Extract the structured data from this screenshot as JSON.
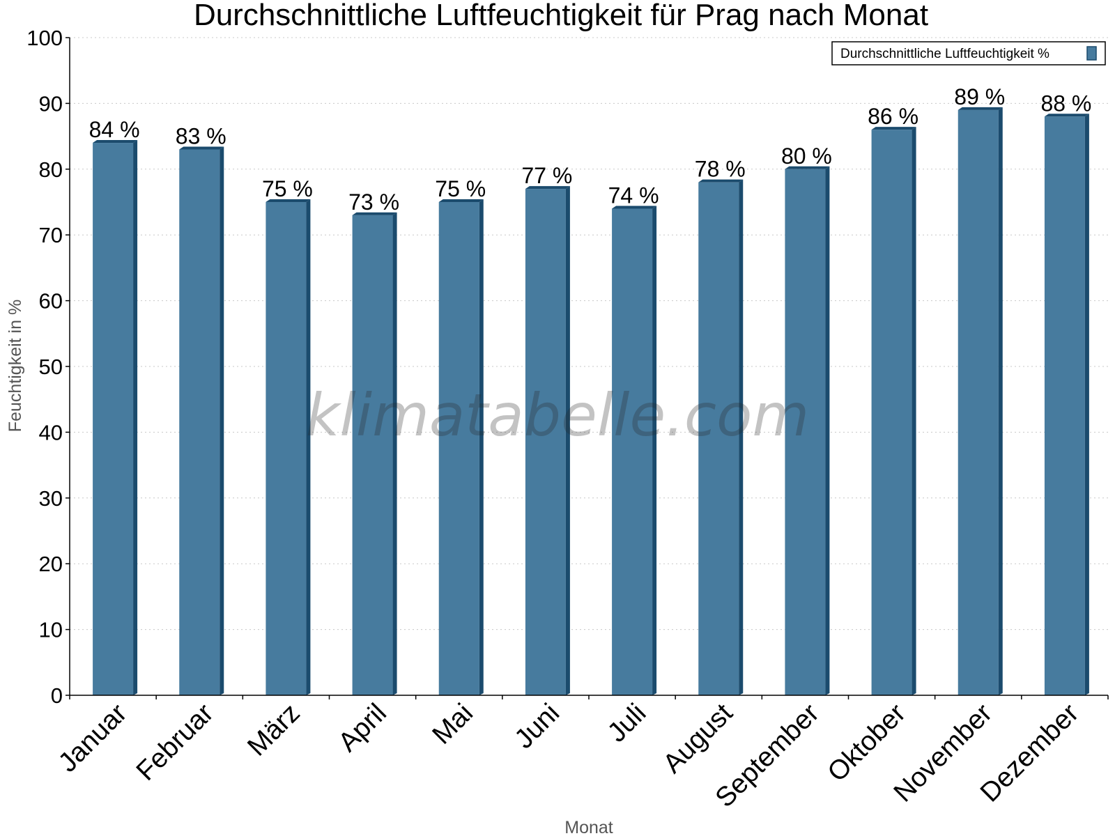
{
  "chart_data": {
    "type": "bar",
    "title": "Durchschnittliche Luftfeuchtigkeit für Prag nach Monat",
    "xlabel": "Monat",
    "ylabel": "Feuchtigkeit in %",
    "categories": [
      "Januar",
      "Februar",
      "März",
      "April",
      "Mai",
      "Juni",
      "Juli",
      "August",
      "September",
      "Oktober",
      "November",
      "Dezember"
    ],
    "series": [
      {
        "name": "Durchschnittliche Luftfeuchtigkeit %",
        "values": [
          84,
          83,
          75,
          73,
          75,
          77,
          74,
          78,
          80,
          86,
          89,
          88
        ],
        "data_labels": [
          "84 %",
          "83 %",
          "75 %",
          "73 %",
          "75 %",
          "77 %",
          "74 %",
          "78 %",
          "80 %",
          "86 %",
          "89 %",
          "88 %"
        ]
      }
    ],
    "ylim": [
      0,
      100
    ],
    "yticks": [
      0,
      10,
      20,
      30,
      40,
      50,
      60,
      70,
      80,
      90,
      100
    ],
    "grid": true,
    "legend_position": "top-right",
    "watermark": "klimatabelle.com",
    "colors": {
      "bar_face": "#477b9e",
      "bar_side": "#1b4b6d",
      "grid": "#c8c8c8",
      "axis": "#000000"
    }
  }
}
